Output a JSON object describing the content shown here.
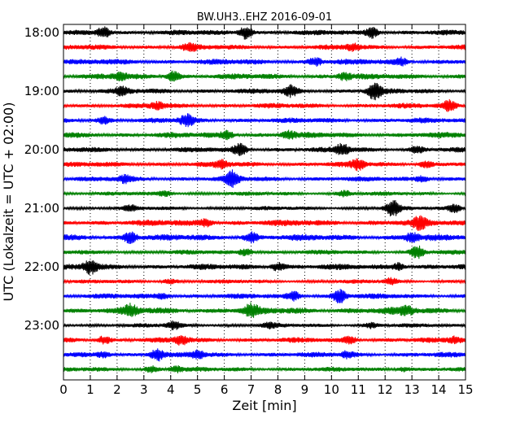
{
  "chart_data": {
    "type": "line",
    "title": "BW.UH3..EHZ 2016-09-01",
    "xlabel": "Zeit  [min]",
    "ylabel": "UTC (Lokalzeit = UTC + 02:00)",
    "xlim": [
      0,
      15
    ],
    "x_ticks": [
      "0",
      "1",
      "2",
      "3",
      "4",
      "5",
      "6",
      "7",
      "8",
      "9",
      "10",
      "11",
      "12",
      "13",
      "14",
      "15"
    ],
    "y_tick_labels": [
      "18:00",
      "19:00",
      "20:00",
      "21:00",
      "22:00",
      "23:00"
    ],
    "grid": "vertical dotted at each minute",
    "trace_interval_min": 15,
    "first_trace_start": "18:00",
    "trace_colors": [
      "#000000",
      "#ff0000",
      "#0000ff",
      "#008000"
    ],
    "series": [
      {
        "start": "18:00",
        "color": "#000000",
        "amplitude": 0.45,
        "bursts": [
          {
            "t": 1.5,
            "a": 0.9
          },
          {
            "t": 6.8,
            "a": 1.1
          },
          {
            "t": 11.5,
            "a": 0.9
          }
        ]
      },
      {
        "start": "18:15",
        "color": "#ff0000",
        "amplitude": 0.45,
        "bursts": [
          {
            "t": 4.7,
            "a": 0.6
          },
          {
            "t": 10.8,
            "a": 0.5
          }
        ]
      },
      {
        "start": "18:30",
        "color": "#0000ff",
        "amplitude": 0.5,
        "bursts": [
          {
            "t": 9.4,
            "a": 0.6
          },
          {
            "t": 12.6,
            "a": 0.6
          }
        ]
      },
      {
        "start": "18:45",
        "color": "#008000",
        "amplitude": 0.5,
        "bursts": [
          {
            "t": 2.1,
            "a": 0.6
          },
          {
            "t": 4.1,
            "a": 0.9
          },
          {
            "t": 10.5,
            "a": 0.6
          }
        ]
      },
      {
        "start": "19:00",
        "color": "#000000",
        "amplitude": 0.45,
        "bursts": [
          {
            "t": 2.2,
            "a": 0.6
          },
          {
            "t": 8.5,
            "a": 0.8
          },
          {
            "t": 11.6,
            "a": 1.4
          }
        ]
      },
      {
        "start": "19:15",
        "color": "#ff0000",
        "amplitude": 0.45,
        "bursts": [
          {
            "t": 3.5,
            "a": 0.5
          },
          {
            "t": 14.4,
            "a": 0.8
          }
        ]
      },
      {
        "start": "19:30",
        "color": "#0000ff",
        "amplitude": 0.45,
        "bursts": [
          {
            "t": 1.5,
            "a": 0.5
          },
          {
            "t": 4.6,
            "a": 0.9
          }
        ]
      },
      {
        "start": "19:45",
        "color": "#008000",
        "amplitude": 0.5,
        "bursts": [
          {
            "t": 6.1,
            "a": 0.6
          },
          {
            "t": 8.4,
            "a": 0.6
          }
        ]
      },
      {
        "start": "20:00",
        "color": "#000000",
        "amplitude": 0.45,
        "bursts": [
          {
            "t": 6.6,
            "a": 0.9
          },
          {
            "t": 10.4,
            "a": 0.9
          },
          {
            "t": 13.2,
            "a": 0.5
          }
        ]
      },
      {
        "start": "20:15",
        "color": "#ff0000",
        "amplitude": 0.45,
        "bursts": [
          {
            "t": 5.9,
            "a": 0.6
          },
          {
            "t": 11.0,
            "a": 0.8
          },
          {
            "t": 13.5,
            "a": 0.5
          }
        ]
      },
      {
        "start": "20:30",
        "color": "#0000ff",
        "amplitude": 0.45,
        "bursts": [
          {
            "t": 2.3,
            "a": 0.5
          },
          {
            "t": 6.3,
            "a": 1.3
          },
          {
            "t": 13.4,
            "a": 0.5
          }
        ]
      },
      {
        "start": "20:45",
        "color": "#008000",
        "amplitude": 0.35,
        "bursts": [
          {
            "t": 3.8,
            "a": 0.4
          },
          {
            "t": 10.5,
            "a": 0.5
          }
        ]
      },
      {
        "start": "21:00",
        "color": "#000000",
        "amplitude": 0.35,
        "bursts": [
          {
            "t": 2.5,
            "a": 0.4
          },
          {
            "t": 12.3,
            "a": 1.3
          },
          {
            "t": 14.6,
            "a": 0.7
          }
        ]
      },
      {
        "start": "21:15",
        "color": "#ff0000",
        "amplitude": 0.55,
        "bursts": [
          {
            "t": 5.3,
            "a": 0.6
          },
          {
            "t": 13.3,
            "a": 0.9
          }
        ]
      },
      {
        "start": "21:30",
        "color": "#0000ff",
        "amplitude": 0.55,
        "bursts": [
          {
            "t": 2.5,
            "a": 0.9
          },
          {
            "t": 7.0,
            "a": 0.8
          },
          {
            "t": 13.0,
            "a": 0.7
          }
        ]
      },
      {
        "start": "21:45",
        "color": "#008000",
        "amplitude": 0.4,
        "bursts": [
          {
            "t": 6.8,
            "a": 0.6
          },
          {
            "t": 13.2,
            "a": 1.0
          }
        ]
      },
      {
        "start": "22:00",
        "color": "#000000",
        "amplitude": 0.5,
        "bursts": [
          {
            "t": 1.0,
            "a": 1.1
          },
          {
            "t": 8.0,
            "a": 0.7
          },
          {
            "t": 12.5,
            "a": 0.6
          }
        ]
      },
      {
        "start": "22:15",
        "color": "#ff0000",
        "amplitude": 0.35,
        "bursts": [
          {
            "t": 4.0,
            "a": 0.4
          },
          {
            "t": 12.2,
            "a": 0.5
          }
        ]
      },
      {
        "start": "22:30",
        "color": "#0000ff",
        "amplitude": 0.45,
        "bursts": [
          {
            "t": 3.7,
            "a": 0.5
          },
          {
            "t": 8.6,
            "a": 0.7
          },
          {
            "t": 10.3,
            "a": 1.1
          }
        ]
      },
      {
        "start": "22:45",
        "color": "#008000",
        "amplitude": 0.6,
        "bursts": [
          {
            "t": 2.5,
            "a": 0.8
          },
          {
            "t": 7.0,
            "a": 0.9
          },
          {
            "t": 12.8,
            "a": 0.6
          }
        ]
      },
      {
        "start": "23:00",
        "color": "#000000",
        "amplitude": 0.35,
        "bursts": [
          {
            "t": 4.1,
            "a": 0.6
          },
          {
            "t": 7.7,
            "a": 0.4
          },
          {
            "t": 11.5,
            "a": 0.4
          }
        ]
      },
      {
        "start": "23:15",
        "color": "#ff0000",
        "amplitude": 0.45,
        "bursts": [
          {
            "t": 1.5,
            "a": 0.6
          },
          {
            "t": 4.4,
            "a": 0.7
          },
          {
            "t": 10.7,
            "a": 0.6
          },
          {
            "t": 14.6,
            "a": 0.5
          }
        ]
      },
      {
        "start": "23:30",
        "color": "#0000ff",
        "amplitude": 0.45,
        "bursts": [
          {
            "t": 1.5,
            "a": 0.5
          },
          {
            "t": 3.5,
            "a": 1.0
          },
          {
            "t": 5.0,
            "a": 0.6
          },
          {
            "t": 10.6,
            "a": 0.5
          }
        ]
      },
      {
        "start": "23:45",
        "color": "#008000",
        "amplitude": 0.4,
        "bursts": [
          {
            "t": 3.3,
            "a": 0.5
          },
          {
            "t": 4.2,
            "a": 0.5
          },
          {
            "t": 12.7,
            "a": 0.4
          }
        ]
      }
    ]
  }
}
